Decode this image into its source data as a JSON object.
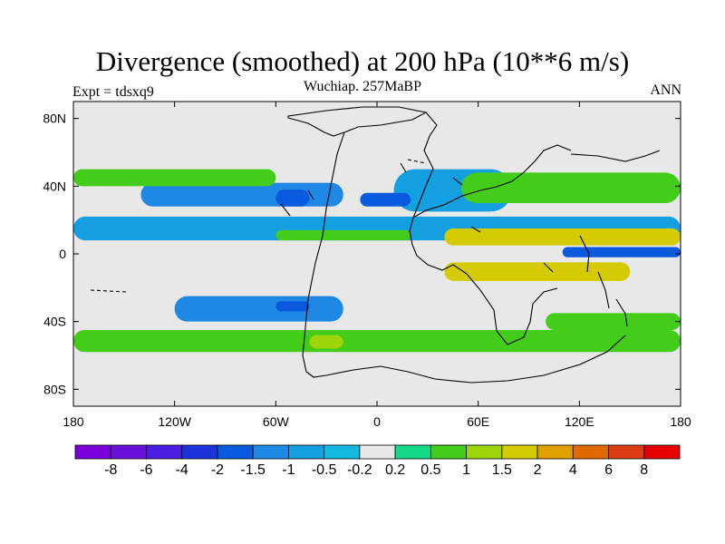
{
  "title": "Divergence (smoothed) at 200 hPa (10**6 m/s)",
  "subtitle": "Wuchiap. 257MaBP",
  "left_label": "Expt = tdsxq9",
  "right_label": "ANN",
  "colors": {
    "background": "#e8e8e8",
    "levels": [
      "#7a00dc",
      "#6a10d8",
      "#4a1ee0",
      "#1e32dc",
      "#0a5ae0",
      "#1e88e4",
      "#14a0e0",
      "#14b8e0",
      "#e8e8e8",
      "#14d88a",
      "#44cc1a",
      "#9ed40a",
      "#d4cc00",
      "#e0a000",
      "#e06a00",
      "#dc3c14",
      "#e60000"
    ]
  },
  "chart_data": {
    "type": "heatmap",
    "projection": "cylindrical-equidistant",
    "title": "Divergence (smoothed) at 200 hPa (10**6 m/s)",
    "subtitle": "Wuchiap. 257MaBP",
    "experiment": "Expt = tdsxq9",
    "season": "ANN",
    "x_range": [
      -180,
      180
    ],
    "y_range": [
      -90,
      90
    ],
    "x_ticks": [
      {
        "value": -180,
        "label": "180"
      },
      {
        "value": -120,
        "label": "120W"
      },
      {
        "value": -60,
        "label": "60W"
      },
      {
        "value": 0,
        "label": "0"
      },
      {
        "value": 60,
        "label": "60E"
      },
      {
        "value": 120,
        "label": "120E"
      },
      {
        "value": 180,
        "label": "180"
      }
    ],
    "y_ticks": [
      {
        "value": 80,
        "label": "80N"
      },
      {
        "value": 40,
        "label": "40N"
      },
      {
        "value": 0,
        "label": "0"
      },
      {
        "value": -40,
        "label": "40S"
      },
      {
        "value": -80,
        "label": "80S"
      }
    ],
    "colorbar_levels": [
      "-8",
      "-6",
      "-4",
      "-2",
      "-1.5",
      "-1",
      "-0.5",
      "-0.2",
      "0.2",
      "0.5",
      "1",
      "1.5",
      "2",
      "4",
      "6",
      "8"
    ],
    "features": [
      {
        "name": "n-tropical-convergence-band",
        "lon": [
          -180,
          180
        ],
        "lat": [
          8,
          22
        ],
        "value": -0.7
      },
      {
        "name": "n-midlat-convergence-west",
        "lon": [
          -140,
          -20
        ],
        "lat": [
          28,
          42
        ],
        "value": -1.2
      },
      {
        "name": "n-midlat-convergence-east",
        "lon": [
          10,
          80
        ],
        "lat": [
          25,
          50
        ],
        "value": -0.8
      },
      {
        "name": "convergence-core-50w",
        "lon": [
          -60,
          -40
        ],
        "lat": [
          28,
          38
        ],
        "value": -2.0
      },
      {
        "name": "convergence-core-10e",
        "lon": [
          -10,
          20
        ],
        "lat": [
          28,
          36
        ],
        "value": -2.0
      },
      {
        "name": "equatorial-convergence-west-pacific",
        "lon": [
          110,
          180
        ],
        "lat": [
          -2,
          4
        ],
        "value": -2.0
      },
      {
        "name": "divergence-band-n-equator",
        "lon": [
          40,
          180
        ],
        "lat": [
          5,
          15
        ],
        "value": 1.8
      },
      {
        "name": "divergence-band-s-equator",
        "lon": [
          40,
          150
        ],
        "lat": [
          -16,
          -5
        ],
        "value": 1.8
      },
      {
        "name": "divergence-band-nh-midlat",
        "lon": [
          -180,
          -60
        ],
        "lat": [
          40,
          50
        ],
        "value": 0.6
      },
      {
        "name": "divergence-band-nh-east",
        "lon": [
          50,
          180
        ],
        "lat": [
          30,
          48
        ],
        "value": 0.8
      },
      {
        "name": "divergence-n-equator-atlantic",
        "lon": [
          -60,
          20
        ],
        "lat": [
          8,
          14
        ],
        "value": 0.6
      },
      {
        "name": "s-subtropical-convergence",
        "lon": [
          -120,
          -20
        ],
        "lat": [
          -40,
          -25
        ],
        "value": -1.2
      },
      {
        "name": "convergence-core-s-atlantic",
        "lon": [
          -60,
          -40
        ],
        "lat": [
          -34,
          -28
        ],
        "value": -2.0
      },
      {
        "name": "s-midlat-divergence",
        "lon": [
          -180,
          180
        ],
        "lat": [
          -58,
          -45
        ],
        "value": 0.6
      },
      {
        "name": "s-midlat-divergence-core",
        "lon": [
          -40,
          -20
        ],
        "lat": [
          -56,
          -48
        ],
        "value": 1.2
      },
      {
        "name": "s-pacific-divergence",
        "lon": [
          100,
          180
        ],
        "lat": [
          -45,
          -35
        ],
        "value": 0.8
      }
    ]
  }
}
